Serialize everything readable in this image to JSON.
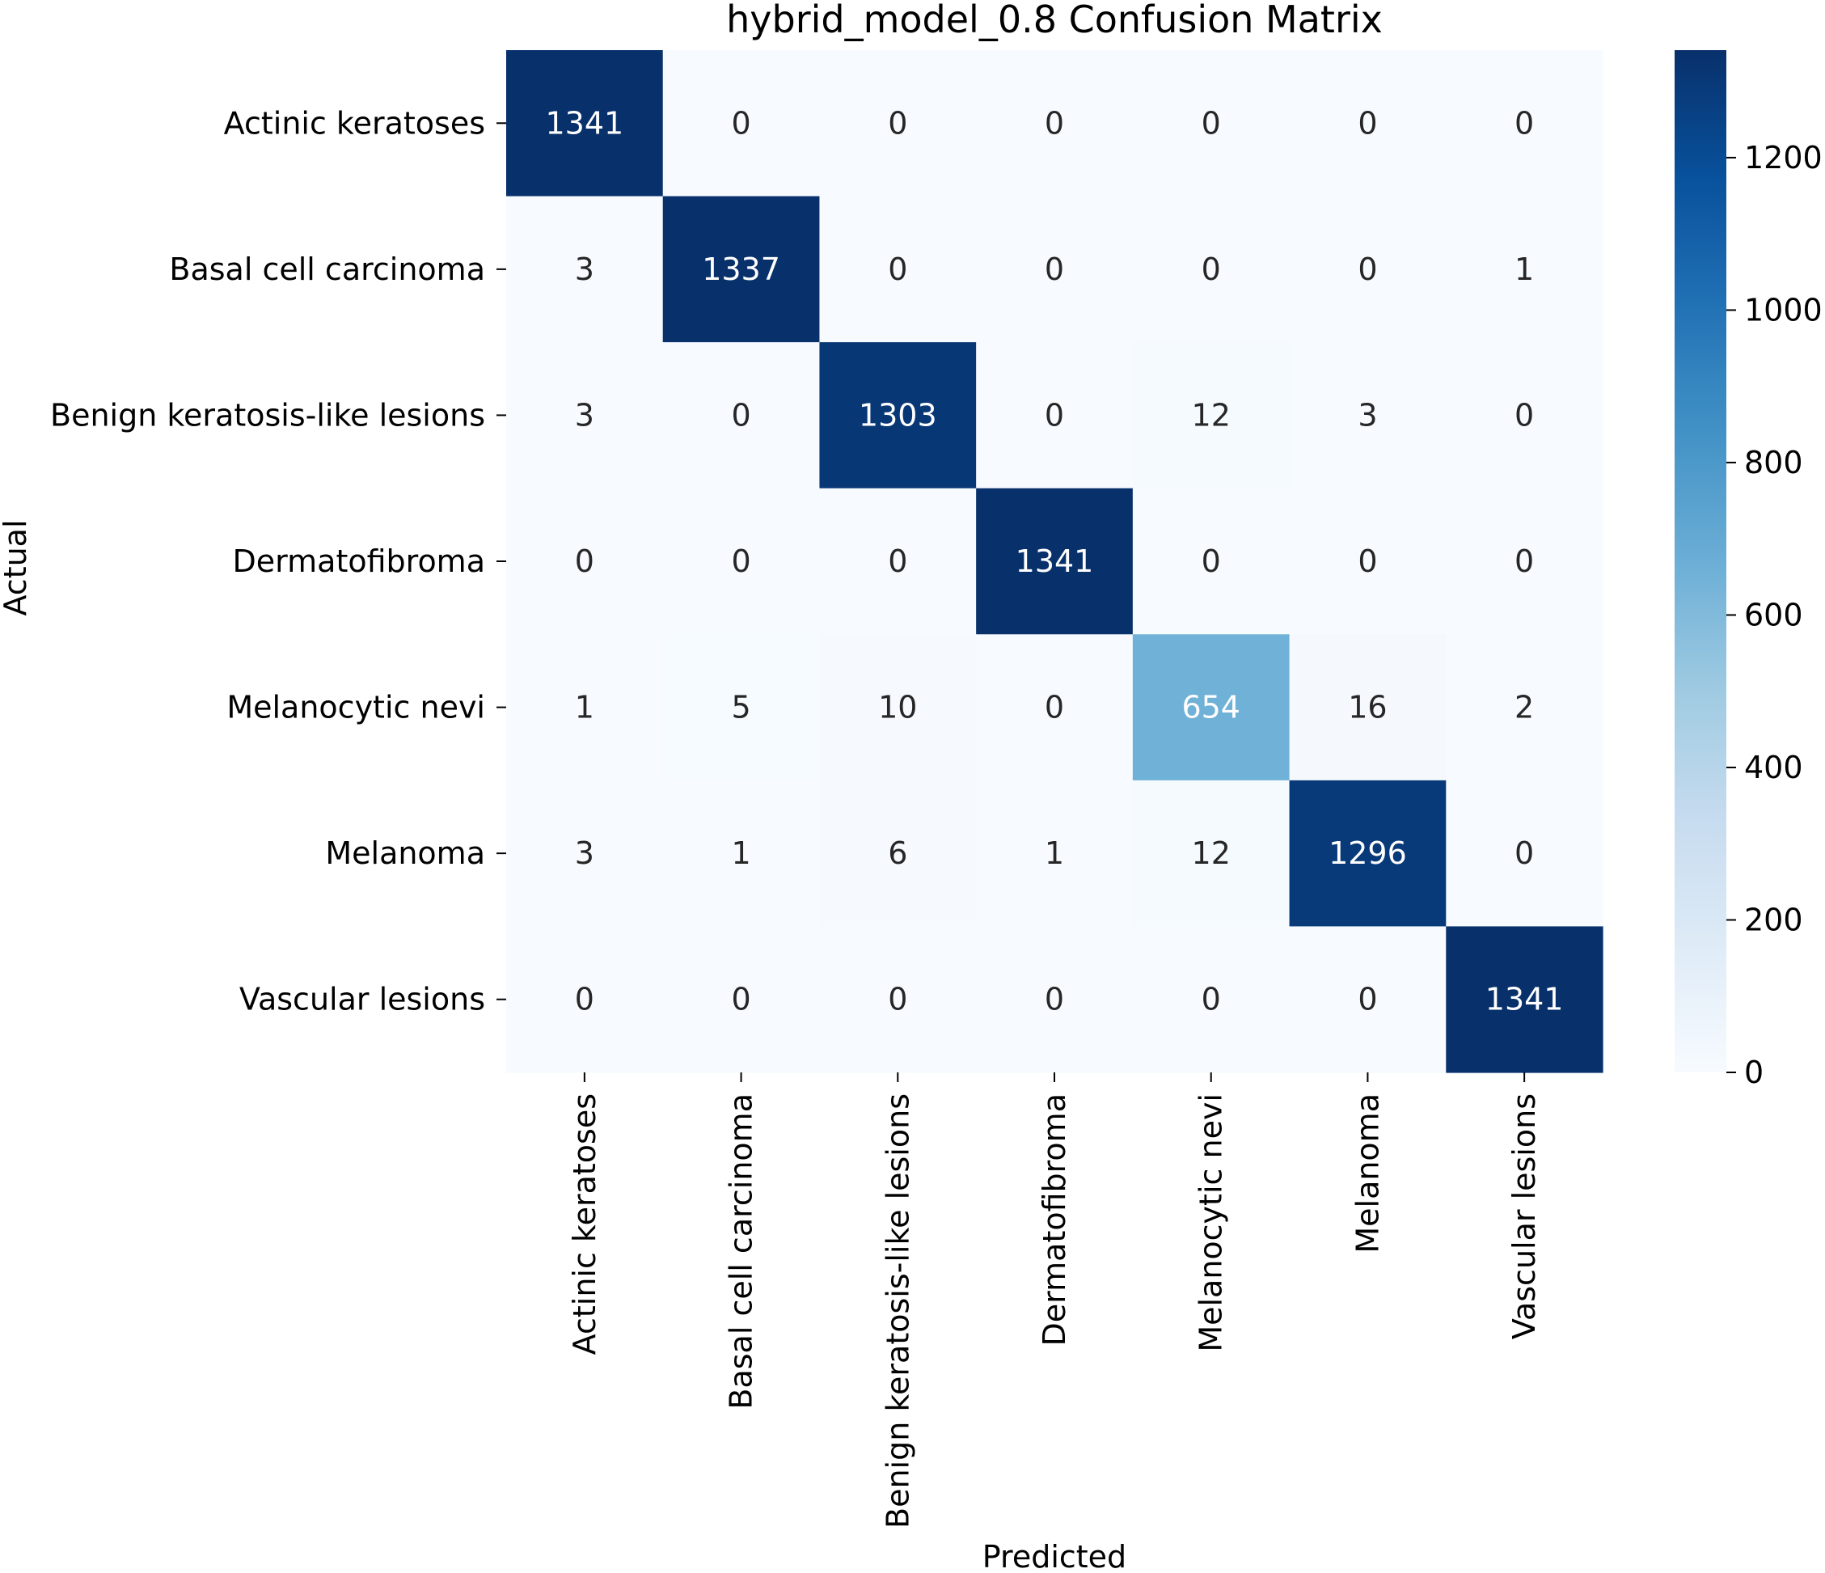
{
  "chart_data": {
    "type": "heatmap",
    "title": "hybrid_model_0.8 Confusion Matrix",
    "xlabel": "Predicted",
    "ylabel": "Actual",
    "row_labels": [
      "Actinic keratoses",
      "Basal cell carcinoma",
      "Benign keratosis-like lesions",
      "Dermatofibroma",
      "Melanocytic nevi",
      "Melanoma",
      "Vascular lesions"
    ],
    "col_labels": [
      "Actinic keratoses",
      "Basal cell carcinoma",
      "Benign keratosis-like lesions",
      "Dermatofibroma",
      "Melanocytic nevi",
      "Melanoma",
      "Vascular lesions"
    ],
    "values": [
      [
        1341,
        0,
        0,
        0,
        0,
        0,
        0
      ],
      [
        3,
        1337,
        0,
        0,
        0,
        0,
        1
      ],
      [
        3,
        0,
        1303,
        0,
        12,
        3,
        0
      ],
      [
        0,
        0,
        0,
        1341,
        0,
        0,
        0
      ],
      [
        1,
        5,
        10,
        0,
        654,
        16,
        2
      ],
      [
        3,
        1,
        6,
        1,
        12,
        1296,
        0
      ],
      [
        0,
        0,
        0,
        0,
        0,
        0,
        1341
      ]
    ],
    "colormap": "Blues",
    "colorbar": {
      "min": 0,
      "max": 1341,
      "ticks": [
        0,
        200,
        400,
        600,
        800,
        1000,
        1200
      ]
    },
    "grid": false
  }
}
